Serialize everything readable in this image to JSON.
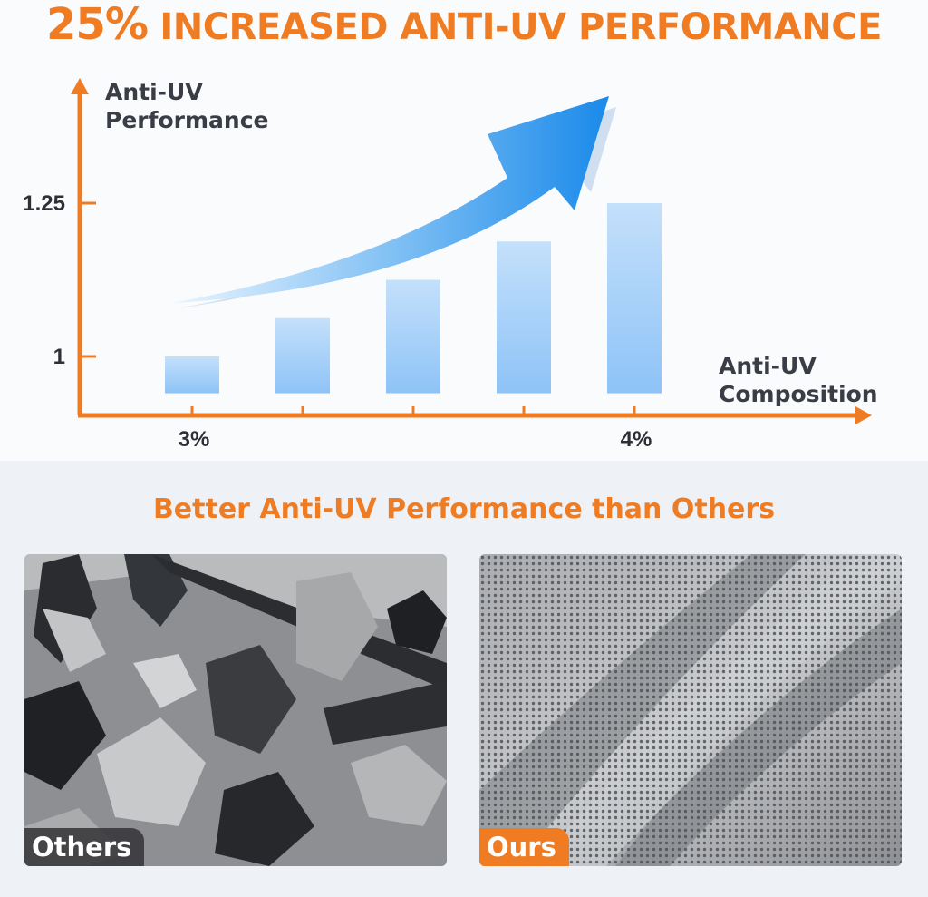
{
  "headline": {
    "percent": "25%",
    "rest": "INCREASED ANTI-UV PERFORMANCE"
  },
  "chart_data": {
    "type": "bar",
    "ylabel_lines": [
      "Anti-UV",
      "Performance"
    ],
    "xlabel_lines": [
      "Anti-UV",
      "Composition"
    ],
    "y_ticks": [
      {
        "value": 1,
        "label": "1"
      },
      {
        "value": 1.25,
        "label": "1.25"
      }
    ],
    "x_tick_labels": [
      {
        "index": 0,
        "label": "3%"
      },
      {
        "index": 4,
        "label": "4%"
      }
    ],
    "values": [
      1.0,
      1.0625,
      1.125,
      1.1875,
      1.25
    ],
    "ylim": [
      0.94,
      1.5
    ],
    "grid": false,
    "axis_color": "#ef7c22",
    "bar_color_top": "#c4e0fb",
    "bar_color_bottom": "#8ec3f7",
    "trend_arrow_color": "#1a8aea"
  },
  "subheading": "Better Anti-UV Performance than Others",
  "photos": {
    "others": {
      "label": "Others"
    },
    "ours": {
      "label": "Ours"
    }
  },
  "colors": {
    "accent": "#ef7c22",
    "text": "#3a3d45",
    "others_badge": "#37373a"
  }
}
